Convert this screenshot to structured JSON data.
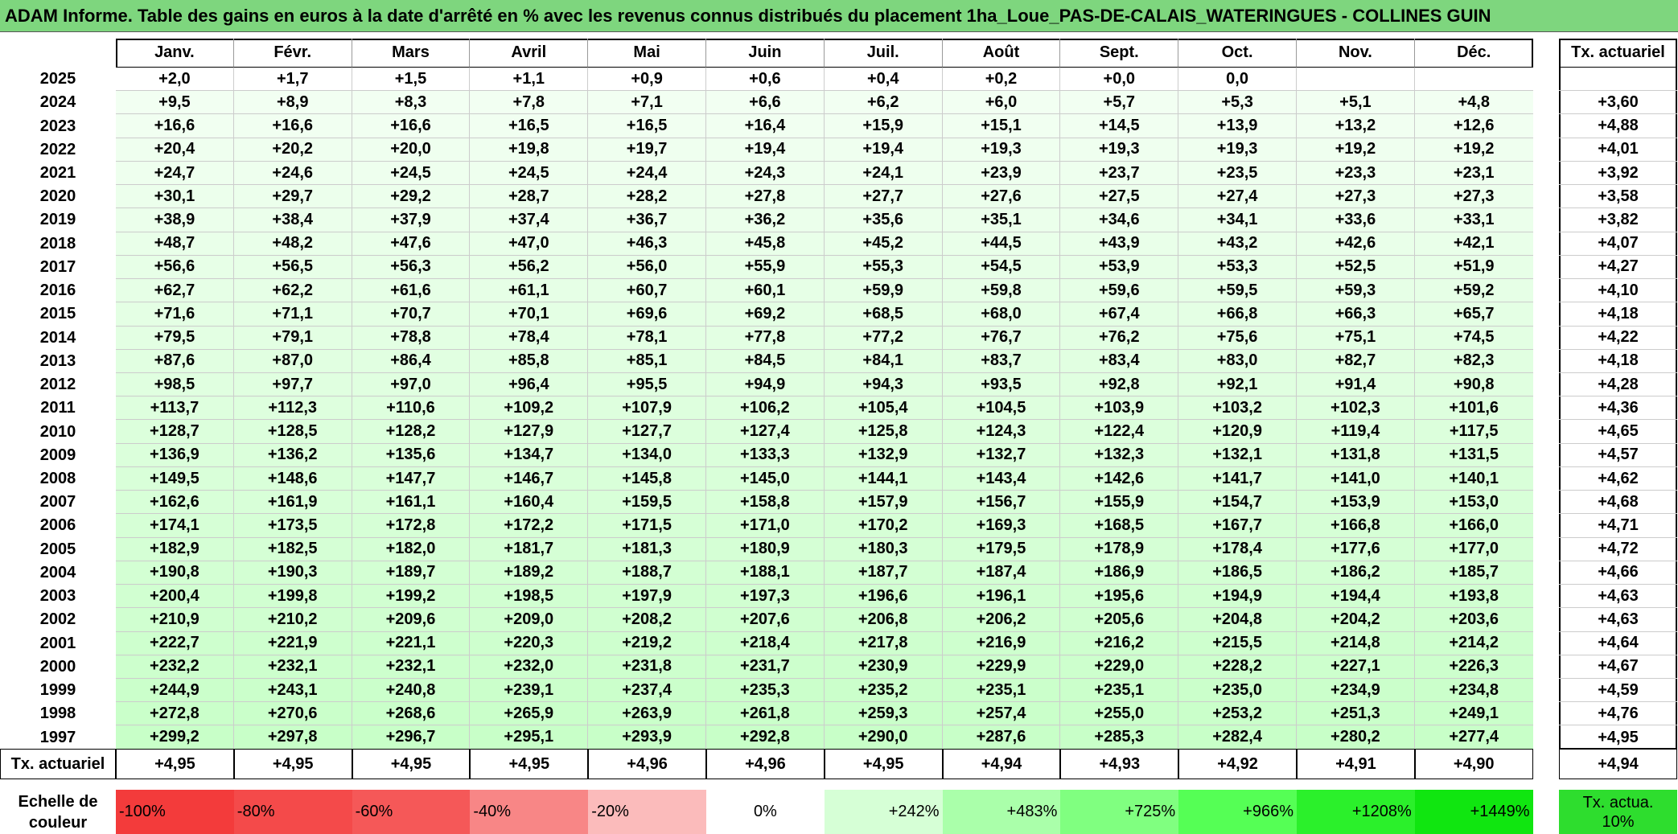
{
  "header": {
    "title": "ADAM Informe. Table des gains en euros à la date d'arrêté en % avec les revenus connus distribués du placement 1ha_Loue_PAS-DE-CALAIS_WATERINGUES - COLLINES GUIN"
  },
  "table": {
    "columns": [
      "Janv.",
      "Févr.",
      "Mars",
      "Avril",
      "Mai",
      "Juin",
      "Juil.",
      "Août",
      "Sept.",
      "Oct.",
      "Nov.",
      "Déc."
    ],
    "rate_column": "Tx. actuariel",
    "rows": [
      {
        "year": "2025",
        "cells": [
          "+2,0",
          "+1,7",
          "+1,5",
          "+1,1",
          "+0,9",
          "+0,6",
          "+0,4",
          "+0,2",
          "+0,0",
          "0,0",
          null,
          null
        ],
        "rate": null
      },
      {
        "year": "2024",
        "cells": [
          "+9,5",
          "+8,9",
          "+8,3",
          "+7,8",
          "+7,1",
          "+6,6",
          "+6,2",
          "+6,0",
          "+5,7",
          "+5,3",
          "+5,1",
          "+4,8"
        ],
        "rate": "+3,60"
      },
      {
        "year": "2023",
        "cells": [
          "+16,6",
          "+16,6",
          "+16,6",
          "+16,5",
          "+16,5",
          "+16,4",
          "+15,9",
          "+15,1",
          "+14,5",
          "+13,9",
          "+13,2",
          "+12,6"
        ],
        "rate": "+4,88"
      },
      {
        "year": "2022",
        "cells": [
          "+20,4",
          "+20,2",
          "+20,0",
          "+19,8",
          "+19,7",
          "+19,4",
          "+19,4",
          "+19,3",
          "+19,3",
          "+19,3",
          "+19,2",
          "+19,2"
        ],
        "rate": "+4,01"
      },
      {
        "year": "2021",
        "cells": [
          "+24,7",
          "+24,6",
          "+24,5",
          "+24,5",
          "+24,4",
          "+24,3",
          "+24,1",
          "+23,9",
          "+23,7",
          "+23,5",
          "+23,3",
          "+23,1"
        ],
        "rate": "+3,92"
      },
      {
        "year": "2020",
        "cells": [
          "+30,1",
          "+29,7",
          "+29,2",
          "+28,7",
          "+28,2",
          "+27,8",
          "+27,7",
          "+27,6",
          "+27,5",
          "+27,4",
          "+27,3",
          "+27,3"
        ],
        "rate": "+3,58"
      },
      {
        "year": "2019",
        "cells": [
          "+38,9",
          "+38,4",
          "+37,9",
          "+37,4",
          "+36,7",
          "+36,2",
          "+35,6",
          "+35,1",
          "+34,6",
          "+34,1",
          "+33,6",
          "+33,1"
        ],
        "rate": "+3,82"
      },
      {
        "year": "2018",
        "cells": [
          "+48,7",
          "+48,2",
          "+47,6",
          "+47,0",
          "+46,3",
          "+45,8",
          "+45,2",
          "+44,5",
          "+43,9",
          "+43,2",
          "+42,6",
          "+42,1"
        ],
        "rate": "+4,07"
      },
      {
        "year": "2017",
        "cells": [
          "+56,6",
          "+56,5",
          "+56,3",
          "+56,2",
          "+56,0",
          "+55,9",
          "+55,3",
          "+54,5",
          "+53,9",
          "+53,3",
          "+52,5",
          "+51,9"
        ],
        "rate": "+4,27"
      },
      {
        "year": "2016",
        "cells": [
          "+62,7",
          "+62,2",
          "+61,6",
          "+61,1",
          "+60,7",
          "+60,1",
          "+59,9",
          "+59,8",
          "+59,6",
          "+59,5",
          "+59,3",
          "+59,2"
        ],
        "rate": "+4,10"
      },
      {
        "year": "2015",
        "cells": [
          "+71,6",
          "+71,1",
          "+70,7",
          "+70,1",
          "+69,6",
          "+69,2",
          "+68,5",
          "+68,0",
          "+67,4",
          "+66,8",
          "+66,3",
          "+65,7"
        ],
        "rate": "+4,18"
      },
      {
        "year": "2014",
        "cells": [
          "+79,5",
          "+79,1",
          "+78,8",
          "+78,4",
          "+78,1",
          "+77,8",
          "+77,2",
          "+76,7",
          "+76,2",
          "+75,6",
          "+75,1",
          "+74,5"
        ],
        "rate": "+4,22"
      },
      {
        "year": "2013",
        "cells": [
          "+87,6",
          "+87,0",
          "+86,4",
          "+85,8",
          "+85,1",
          "+84,5",
          "+84,1",
          "+83,7",
          "+83,4",
          "+83,0",
          "+82,7",
          "+82,3"
        ],
        "rate": "+4,18"
      },
      {
        "year": "2012",
        "cells": [
          "+98,5",
          "+97,7",
          "+97,0",
          "+96,4",
          "+95,5",
          "+94,9",
          "+94,3",
          "+93,5",
          "+92,8",
          "+92,1",
          "+91,4",
          "+90,8"
        ],
        "rate": "+4,28"
      },
      {
        "year": "2011",
        "cells": [
          "+113,7",
          "+112,3",
          "+110,6",
          "+109,2",
          "+107,9",
          "+106,2",
          "+105,4",
          "+104,5",
          "+103,9",
          "+103,2",
          "+102,3",
          "+101,6"
        ],
        "rate": "+4,36"
      },
      {
        "year": "2010",
        "cells": [
          "+128,7",
          "+128,5",
          "+128,2",
          "+127,9",
          "+127,7",
          "+127,4",
          "+125,8",
          "+124,3",
          "+122,4",
          "+120,9",
          "+119,4",
          "+117,5"
        ],
        "rate": "+4,65"
      },
      {
        "year": "2009",
        "cells": [
          "+136,9",
          "+136,2",
          "+135,6",
          "+134,7",
          "+134,0",
          "+133,3",
          "+132,9",
          "+132,7",
          "+132,3",
          "+132,1",
          "+131,8",
          "+131,5"
        ],
        "rate": "+4,57"
      },
      {
        "year": "2008",
        "cells": [
          "+149,5",
          "+148,6",
          "+147,7",
          "+146,7",
          "+145,8",
          "+145,0",
          "+144,1",
          "+143,4",
          "+142,6",
          "+141,7",
          "+141,0",
          "+140,1"
        ],
        "rate": "+4,62"
      },
      {
        "year": "2007",
        "cells": [
          "+162,6",
          "+161,9",
          "+161,1",
          "+160,4",
          "+159,5",
          "+158,8",
          "+157,9",
          "+156,7",
          "+155,9",
          "+154,7",
          "+153,9",
          "+153,0"
        ],
        "rate": "+4,68"
      },
      {
        "year": "2006",
        "cells": [
          "+174,1",
          "+173,5",
          "+172,8",
          "+172,2",
          "+171,5",
          "+171,0",
          "+170,2",
          "+169,3",
          "+168,5",
          "+167,7",
          "+166,8",
          "+166,0"
        ],
        "rate": "+4,71"
      },
      {
        "year": "2005",
        "cells": [
          "+182,9",
          "+182,5",
          "+182,0",
          "+181,7",
          "+181,3",
          "+180,9",
          "+180,3",
          "+179,5",
          "+178,9",
          "+178,4",
          "+177,6",
          "+177,0"
        ],
        "rate": "+4,72"
      },
      {
        "year": "2004",
        "cells": [
          "+190,8",
          "+190,3",
          "+189,7",
          "+189,2",
          "+188,7",
          "+188,1",
          "+187,7",
          "+187,4",
          "+186,9",
          "+186,5",
          "+186,2",
          "+185,7"
        ],
        "rate": "+4,66"
      },
      {
        "year": "2003",
        "cells": [
          "+200,4",
          "+199,8",
          "+199,2",
          "+198,5",
          "+197,9",
          "+197,3",
          "+196,6",
          "+196,1",
          "+195,6",
          "+194,9",
          "+194,4",
          "+193,8"
        ],
        "rate": "+4,63"
      },
      {
        "year": "2002",
        "cells": [
          "+210,9",
          "+210,2",
          "+209,6",
          "+209,0",
          "+208,2",
          "+207,6",
          "+206,8",
          "+206,2",
          "+205,6",
          "+204,8",
          "+204,2",
          "+203,6"
        ],
        "rate": "+4,63"
      },
      {
        "year": "2001",
        "cells": [
          "+222,7",
          "+221,9",
          "+221,1",
          "+220,3",
          "+219,2",
          "+218,4",
          "+217,8",
          "+216,9",
          "+216,2",
          "+215,5",
          "+214,8",
          "+214,2"
        ],
        "rate": "+4,64"
      },
      {
        "year": "2000",
        "cells": [
          "+232,2",
          "+232,1",
          "+232,1",
          "+232,0",
          "+231,8",
          "+231,7",
          "+230,9",
          "+229,9",
          "+229,0",
          "+228,2",
          "+227,1",
          "+226,3"
        ],
        "rate": "+4,67"
      },
      {
        "year": "1999",
        "cells": [
          "+244,9",
          "+243,1",
          "+240,8",
          "+239,1",
          "+237,4",
          "+235,3",
          "+235,2",
          "+235,1",
          "+235,1",
          "+235,0",
          "+234,9",
          "+234,8"
        ],
        "rate": "+4,59"
      },
      {
        "year": "1998",
        "cells": [
          "+272,8",
          "+270,6",
          "+268,6",
          "+265,9",
          "+263,9",
          "+261,8",
          "+259,3",
          "+257,4",
          "+255,0",
          "+253,2",
          "+251,3",
          "+249,1"
        ],
        "rate": "+4,76"
      },
      {
        "year": "1997",
        "cells": [
          "+299,2",
          "+297,8",
          "+296,7",
          "+295,1",
          "+293,9",
          "+292,8",
          "+290,0",
          "+287,6",
          "+285,3",
          "+282,4",
          "+280,2",
          "+277,4"
        ],
        "rate": "+4,95"
      }
    ],
    "footer": {
      "label": "Tx. actuariel",
      "cells": [
        "+4,95",
        "+4,95",
        "+4,95",
        "+4,95",
        "+4,96",
        "+4,96",
        "+4,95",
        "+4,94",
        "+4,93",
        "+4,92",
        "+4,91",
        "+4,90"
      ],
      "rate": "+4,94"
    }
  },
  "color_scale": {
    "label": "Echelle de couleur",
    "items": [
      {
        "label": "-100%",
        "color": "#f33b3b"
      },
      {
        "label": "-80%",
        "color": "#f44a4a"
      },
      {
        "label": "-60%",
        "color": "#f55858"
      },
      {
        "label": "-40%",
        "color": "#f88686"
      },
      {
        "label": "-20%",
        "color": "#fbbbbb"
      },
      {
        "label": "0%",
        "color": "#ffffff"
      },
      {
        "label": "+242%",
        "color": "#d6ffd6"
      },
      {
        "label": "+483%",
        "color": "#aaffaa"
      },
      {
        "label": "+725%",
        "color": "#80ff80"
      },
      {
        "label": "+966%",
        "color": "#55ff55"
      },
      {
        "label": "+1208%",
        "color": "#2bf02b"
      },
      {
        "label": "+1449%",
        "color": "#10e610"
      }
    ],
    "rate_item": {
      "label": "Tx. actua. 10%",
      "color": "#2edd2e"
    }
  }
}
